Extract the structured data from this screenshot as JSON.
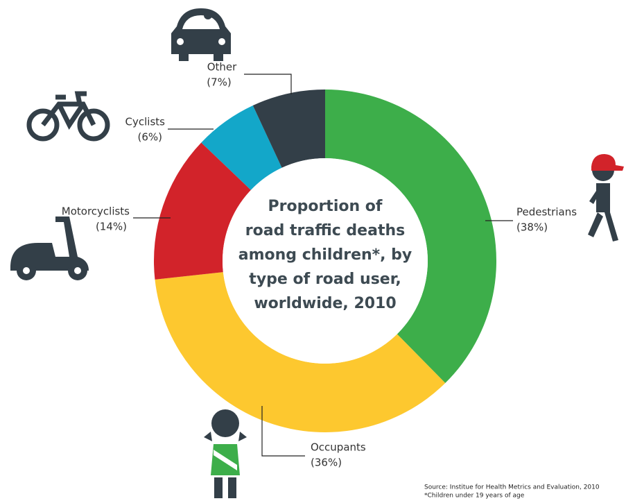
{
  "chart_data": {
    "type": "pie",
    "title": [
      "Proportion of",
      "road traffic deaths",
      "among children*, by",
      "type of road user,",
      "worldwide, 2010"
    ],
    "categories": [
      "Pedestrians",
      "Occupants",
      "Motorcyclists",
      "Cyclists",
      "Other"
    ],
    "values": [
      38,
      36,
      14,
      6,
      7
    ],
    "value_labels": [
      "(38%)",
      "(36%)",
      "(14%)",
      "(6%)",
      "(7%)"
    ],
    "colors": [
      "#3dae4a",
      "#fdc82f",
      "#d2232a",
      "#13a7c9",
      "#333f48"
    ],
    "donut": true,
    "notes": [
      "Source: Institue for Health Metrics and Evaluation, 2010",
      "*Children under 19 years of age"
    ]
  }
}
